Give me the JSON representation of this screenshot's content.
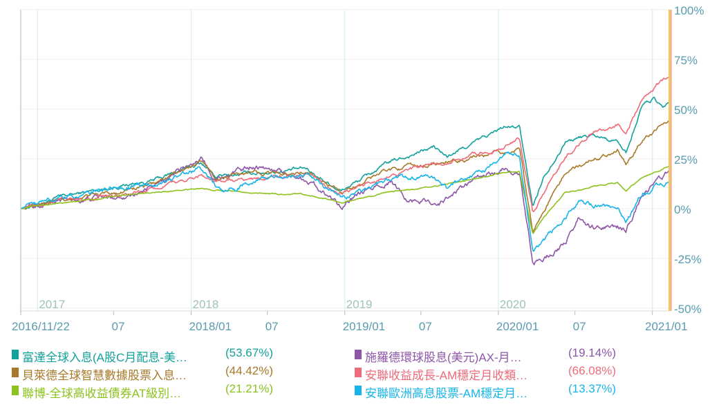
{
  "chart_data": {
    "type": "line",
    "title": "",
    "xlabel": "",
    "ylabel": "",
    "x_range": [
      "2016-11-22",
      "2021-02-10"
    ],
    "ylim": [
      -50,
      100
    ],
    "y_ticks": [
      "100%",
      "75%",
      "50%",
      "25%",
      "0%",
      "-25%",
      "-50%"
    ],
    "y_tick_values": [
      100,
      75,
      50,
      25,
      0,
      -25,
      -50
    ],
    "y_axis_position": "right",
    "x_ticks": [
      {
        "date": "2016-11-22",
        "label": "2016/11/22"
      },
      {
        "date": "2017-07-01",
        "label": "07"
      },
      {
        "date": "2018-01-01",
        "label": "2018/01"
      },
      {
        "date": "2018-07-01",
        "label": "07"
      },
      {
        "date": "2019-01-01",
        "label": "2019/01"
      },
      {
        "date": "2019-07-01",
        "label": "07"
      },
      {
        "date": "2020-01-01",
        "label": "2020/01"
      },
      {
        "date": "2020-07-01",
        "label": "07"
      },
      {
        "date": "2021-01-01",
        "label": "2021/01"
      }
    ],
    "year_markers": [
      {
        "date": "2017-01-01",
        "label": "2017"
      },
      {
        "date": "2018-01-01",
        "label": "2018"
      },
      {
        "date": "2019-01-01",
        "label": "2019"
      },
      {
        "date": "2020-01-01",
        "label": "2020"
      },
      {
        "date": "2021-01-01",
        "label": ""
      }
    ],
    "grid": true,
    "legend_position": "bottom",
    "series": [
      {
        "name": "富達全球入息(A股C月配息-美…",
        "return_label": "(53.67%)",
        "color": "#13a19c",
        "noise": 1.2,
        "points": [
          [
            "2016-11-22",
            0
          ],
          [
            "2017-03-01",
            6
          ],
          [
            "2017-07-01",
            11
          ],
          [
            "2017-10-01",
            14
          ],
          [
            "2018-01-26",
            23
          ],
          [
            "2018-03-01",
            16
          ],
          [
            "2018-06-01",
            18
          ],
          [
            "2018-10-01",
            20
          ],
          [
            "2018-12-24",
            9
          ],
          [
            "2019-04-15",
            23
          ],
          [
            "2019-08-01",
            31
          ],
          [
            "2019-09-01",
            26
          ],
          [
            "2019-12-01",
            36
          ],
          [
            "2020-01-15",
            41
          ],
          [
            "2020-02-20",
            41
          ],
          [
            "2020-03-23",
            1
          ],
          [
            "2020-04-15",
            15
          ],
          [
            "2020-06-08",
            34
          ],
          [
            "2020-08-15",
            37
          ],
          [
            "2020-10-10",
            34
          ],
          [
            "2020-10-30",
            28
          ],
          [
            "2020-12-10",
            53
          ],
          [
            "2021-01-05",
            55
          ],
          [
            "2021-01-25",
            50
          ],
          [
            "2021-02-10",
            53.67
          ]
        ]
      },
      {
        "name": "施羅德環球股息(美元)AX-月…",
        "return_label": "(19.14%)",
        "color": "#8e56a8",
        "noise": 1.8,
        "points": [
          [
            "2016-11-22",
            0
          ],
          [
            "2017-03-01",
            4
          ],
          [
            "2017-07-01",
            6
          ],
          [
            "2017-10-01",
            10
          ],
          [
            "2018-01-26",
            26
          ],
          [
            "2018-03-01",
            15
          ],
          [
            "2018-06-01",
            22
          ],
          [
            "2018-10-01",
            15
          ],
          [
            "2018-12-24",
            2
          ],
          [
            "2019-04-15",
            14
          ],
          [
            "2019-06-01",
            5
          ],
          [
            "2019-08-15",
            3
          ],
          [
            "2019-10-15",
            12
          ],
          [
            "2020-01-15",
            20
          ],
          [
            "2020-02-20",
            18
          ],
          [
            "2020-03-23",
            -28
          ],
          [
            "2020-06-08",
            -18
          ],
          [
            "2020-07-10",
            -5
          ],
          [
            "2020-08-15",
            -10
          ],
          [
            "2020-10-10",
            -9
          ],
          [
            "2020-10-30",
            -11
          ],
          [
            "2020-12-10",
            8
          ],
          [
            "2021-01-05",
            12
          ],
          [
            "2021-02-10",
            19.14
          ]
        ]
      },
      {
        "name": "貝萊德全球智慧數據股票入息…",
        "return_label": "(44.42%)",
        "color": "#a8792a",
        "noise": 1.3,
        "points": [
          [
            "2016-11-22",
            0
          ],
          [
            "2017-03-01",
            5
          ],
          [
            "2017-07-01",
            8
          ],
          [
            "2017-10-01",
            12
          ],
          [
            "2018-01-26",
            24
          ],
          [
            "2018-03-01",
            15
          ],
          [
            "2018-06-01",
            18
          ],
          [
            "2018-10-01",
            18
          ],
          [
            "2018-12-24",
            8
          ],
          [
            "2019-04-15",
            20
          ],
          [
            "2019-08-01",
            22
          ],
          [
            "2020-01-15",
            28
          ],
          [
            "2020-02-20",
            30
          ],
          [
            "2020-03-23",
            -11
          ],
          [
            "2020-06-08",
            18
          ],
          [
            "2020-08-15",
            25
          ],
          [
            "2020-10-10",
            30
          ],
          [
            "2020-10-30",
            22
          ],
          [
            "2020-12-10",
            35
          ],
          [
            "2021-01-05",
            39
          ],
          [
            "2021-02-10",
            44.42
          ]
        ]
      },
      {
        "name": "安聯收益成長-AM穩定月收類…",
        "return_label": "(66.08%)",
        "color": "#ee6b7a",
        "noise": 1.2,
        "points": [
          [
            "2016-11-22",
            0
          ],
          [
            "2017-03-01",
            4
          ],
          [
            "2017-07-01",
            6
          ],
          [
            "2017-10-01",
            9
          ],
          [
            "2018-01-26",
            17
          ],
          [
            "2018-03-01",
            13
          ],
          [
            "2018-06-01",
            15
          ],
          [
            "2018-10-01",
            17
          ],
          [
            "2018-12-24",
            7
          ],
          [
            "2019-04-15",
            17
          ],
          [
            "2019-08-01",
            22
          ],
          [
            "2020-01-15",
            31
          ],
          [
            "2020-02-20",
            35
          ],
          [
            "2020-03-23",
            -2
          ],
          [
            "2020-06-08",
            26
          ],
          [
            "2020-08-15",
            39
          ],
          [
            "2020-10-10",
            42
          ],
          [
            "2020-10-30",
            39
          ],
          [
            "2020-12-10",
            56
          ],
          [
            "2021-01-05",
            61
          ],
          [
            "2021-02-10",
            66.08
          ]
        ]
      },
      {
        "name": "聯博-全球高收益債券AT級別…",
        "return_label": "(21.21%)",
        "color": "#8cc21e",
        "noise": 0.4,
        "points": [
          [
            "2016-11-22",
            0
          ],
          [
            "2017-03-01",
            3
          ],
          [
            "2017-07-01",
            6
          ],
          [
            "2017-10-01",
            8
          ],
          [
            "2018-01-26",
            10
          ],
          [
            "2018-06-01",
            8
          ],
          [
            "2018-10-01",
            7
          ],
          [
            "2018-12-24",
            3
          ],
          [
            "2019-04-15",
            8
          ],
          [
            "2019-08-01",
            11
          ],
          [
            "2020-01-15",
            18
          ],
          [
            "2020-02-20",
            19
          ],
          [
            "2020-03-23",
            -13
          ],
          [
            "2020-04-15",
            -5
          ],
          [
            "2020-06-08",
            8
          ],
          [
            "2020-08-15",
            11
          ],
          [
            "2020-10-10",
            13
          ],
          [
            "2020-10-30",
            9
          ],
          [
            "2020-12-10",
            16
          ],
          [
            "2021-01-05",
            18
          ],
          [
            "2021-02-10",
            21.21
          ]
        ]
      },
      {
        "name": "安聯歐洲高息股票-AM穩定月…",
        "return_label": "(13.37%)",
        "color": "#17b4ea",
        "noise": 1.6,
        "points": [
          [
            "2016-11-22",
            0
          ],
          [
            "2017-01-01",
            4
          ],
          [
            "2017-03-01",
            5
          ],
          [
            "2017-07-01",
            10
          ],
          [
            "2017-10-01",
            12
          ],
          [
            "2018-01-26",
            20
          ],
          [
            "2018-03-20",
            7
          ],
          [
            "2018-06-01",
            15
          ],
          [
            "2018-10-01",
            17
          ],
          [
            "2018-12-24",
            5
          ],
          [
            "2019-04-15",
            15
          ],
          [
            "2019-08-01",
            16
          ],
          [
            "2019-09-01",
            10
          ],
          [
            "2019-12-15",
            22
          ],
          [
            "2020-01-15",
            28
          ],
          [
            "2020-02-20",
            27
          ],
          [
            "2020-03-23",
            -22
          ],
          [
            "2020-06-08",
            -4
          ],
          [
            "2020-07-10",
            3
          ],
          [
            "2020-10-10",
            1
          ],
          [
            "2020-10-30",
            -6
          ],
          [
            "2020-12-10",
            8
          ],
          [
            "2021-01-05",
            11
          ],
          [
            "2021-02-10",
            13.37
          ]
        ]
      }
    ]
  }
}
